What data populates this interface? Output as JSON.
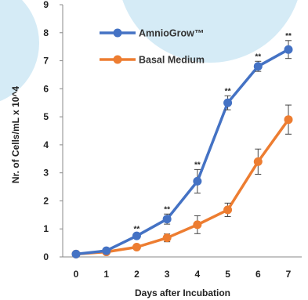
{
  "chart_data": {
    "type": "line",
    "xlabel": "Days after Incubation",
    "ylabel": "Nr. of Cells/mL  x 10^4",
    "x": [
      0,
      1,
      2,
      3,
      4,
      5,
      6,
      7
    ],
    "xlim": [
      0,
      7
    ],
    "ylim": [
      0,
      9
    ],
    "yticks": [
      0,
      1,
      2,
      3,
      4,
      5,
      6,
      7,
      8,
      9
    ],
    "grid": false,
    "legend_position": "top-left",
    "series": [
      {
        "name": "AmnioGrow™",
        "color": "#4472c4",
        "values": [
          0.1,
          0.22,
          0.75,
          1.35,
          2.7,
          5.5,
          6.8,
          7.4
        ],
        "errors": [
          0.03,
          0.04,
          0.08,
          0.18,
          0.42,
          0.25,
          0.18,
          0.32
        ],
        "significance": [
          "",
          "",
          "**",
          "**",
          "**",
          "**",
          "**",
          "**"
        ]
      },
      {
        "name": "Basal Medium",
        "color": "#ed7d31",
        "values": [
          0.1,
          0.18,
          0.35,
          0.68,
          1.15,
          1.68,
          3.4,
          4.9
        ],
        "errors": [
          0.03,
          0.04,
          0.05,
          0.14,
          0.32,
          0.24,
          0.45,
          0.52
        ],
        "significance": [
          "",
          "",
          "",
          "",
          "",
          "",
          "",
          ""
        ]
      }
    ]
  }
}
